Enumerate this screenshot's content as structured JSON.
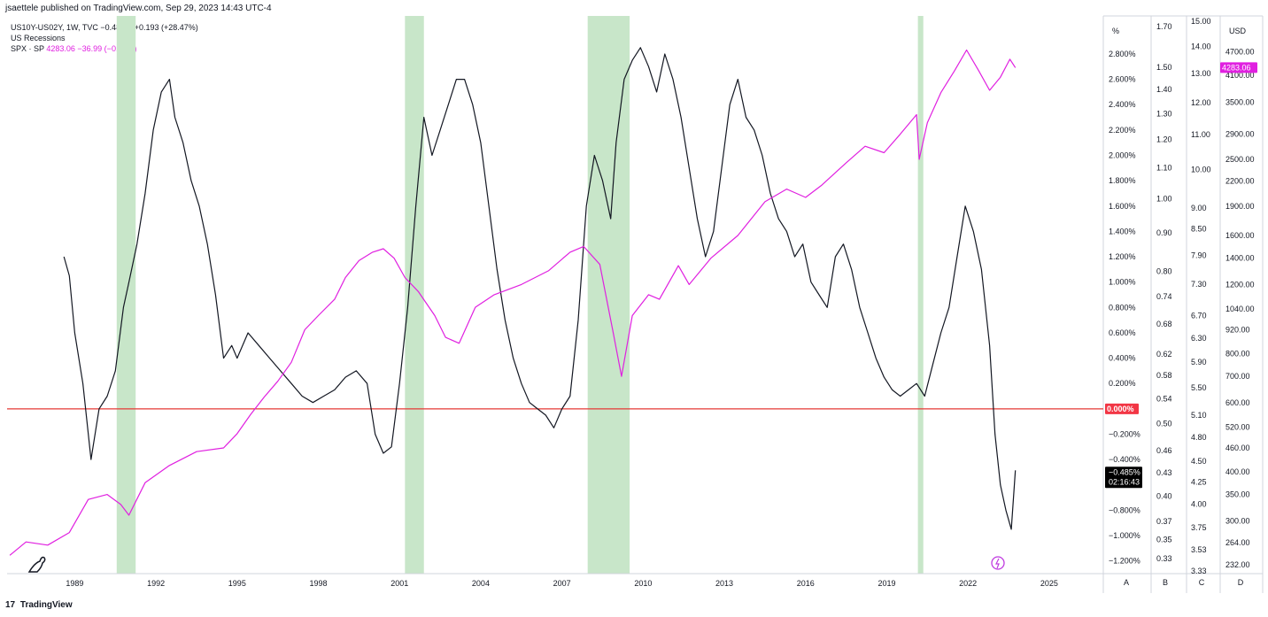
{
  "header": {
    "text": "jsaettele published on TradingView.com, Sep 29, 2023 14:43 UTC-4"
  },
  "legend": {
    "spread_name": "US10Y-US02Y, 1W, TVC",
    "spread_values": "−0.485%  +0.193 (+28.47%)",
    "recessions_name": "US Recessions",
    "spx_name": "SPX · SP",
    "spx_values": "4283.06  −36.99 (−0.86%)"
  },
  "footer": {
    "brand": "TradingView",
    "logo": "17"
  },
  "scales": {
    "A_unit": "%",
    "D_unit": "USD",
    "A_labels": [
      "2.800%",
      "2.600%",
      "2.400%",
      "2.200%",
      "2.000%",
      "1.800%",
      "1.600%",
      "1.400%",
      "1.200%",
      "1.000%",
      "0.800%",
      "0.600%",
      "0.400%",
      "0.200%",
      "−0.200%",
      "−0.400%",
      "−0.800%",
      "−1.000%",
      "−1.200%"
    ],
    "B_labels": [
      "1.70",
      "1.50",
      "1.40",
      "1.30",
      "1.20",
      "1.10",
      "1.00",
      "0.90",
      "0.80",
      "0.74",
      "0.68",
      "0.62",
      "0.58",
      "0.54",
      "0.50",
      "0.46",
      "0.43",
      "0.40",
      "0.37",
      "0.35",
      "0.33"
    ],
    "C_labels": [
      "15.00",
      "14.00",
      "13.00",
      "12.00",
      "11.00",
      "10.00",
      "9.00",
      "8.50",
      "7.90",
      "7.30",
      "6.70",
      "6.30",
      "5.90",
      "5.50",
      "5.10",
      "4.80",
      "4.50",
      "4.25",
      "4.00",
      "3.75",
      "3.53",
      "3.33"
    ],
    "D_labels": [
      "4700.00",
      "4100.00",
      "3500.00",
      "2900.00",
      "2500.00",
      "2200.00",
      "1900.00",
      "1600.00",
      "1400.00",
      "1200.00",
      "1040.00",
      "920.00",
      "800.00",
      "700.00",
      "600.00",
      "520.00",
      "460.00",
      "400.00",
      "350.00",
      "300.00",
      "264.00",
      "232.00"
    ],
    "pane_letters": [
      "A",
      "B",
      "C",
      "D"
    ],
    "zero_tag": "0.000%",
    "last_tag": "−0.485%",
    "countdown": "02:16:43",
    "spx_tag": "4283.06"
  },
  "colors": {
    "spread": "#131722",
    "spx": "#e020e0",
    "recession": "#c8e6c9",
    "zero_line": "#e53935",
    "tag_zero": "#f23645",
    "tag_last": "#000000"
  },
  "icons": {
    "watermark": "dino-icon",
    "flash": "lightning-icon"
  },
  "chart_data": {
    "type": "line",
    "x_tick_labels": [
      "1989",
      "1992",
      "1995",
      "1998",
      "2001",
      "2004",
      "2007",
      "2010",
      "2013",
      "2016",
      "2019",
      "2022",
      "2025"
    ],
    "x_ticks": [
      1989,
      1992,
      1995,
      1998,
      2001,
      2004,
      2007,
      2010,
      2013,
      2016,
      2019,
      2022,
      2025
    ],
    "xlim": [
      1986.5,
      2027.0
    ],
    "y_left_lim": [
      -1.3,
      3.1
    ],
    "y_right_log_lim": [
      220,
      5800
    ],
    "zero_line": 0.0,
    "recessions": [
      [
        1990.55,
        1991.25
      ],
      [
        2001.2,
        2001.9
      ],
      [
        2007.95,
        2009.5
      ],
      [
        2020.15,
        2020.35
      ]
    ],
    "series": [
      {
        "name": "US10Y-US02Y",
        "axis": "left",
        "x": [
          1988.6,
          1988.8,
          1989.0,
          1989.3,
          1989.6,
          1989.9,
          1990.2,
          1990.5,
          1990.8,
          1991.0,
          1991.3,
          1991.6,
          1991.9,
          1992.2,
          1992.5,
          1992.7,
          1993.0,
          1993.3,
          1993.6,
          1993.9,
          1994.2,
          1994.5,
          1994.8,
          1995.0,
          1995.4,
          1995.8,
          1996.2,
          1996.6,
          1997.0,
          1997.4,
          1997.8,
          1998.2,
          1998.6,
          1999.0,
          1999.4,
          1999.8,
          2000.1,
          2000.4,
          2000.7,
          2001.0,
          2001.3,
          2001.6,
          2001.9,
          2002.2,
          2002.5,
          2002.8,
          2003.1,
          2003.4,
          2003.7,
          2004.0,
          2004.3,
          2004.6,
          2004.9,
          2005.2,
          2005.5,
          2005.8,
          2006.1,
          2006.4,
          2006.7,
          2007.0,
          2007.3,
          2007.6,
          2007.9,
          2008.2,
          2008.5,
          2008.8,
          2009.0,
          2009.3,
          2009.6,
          2009.9,
          2010.2,
          2010.5,
          2010.8,
          2011.1,
          2011.4,
          2011.7,
          2012.0,
          2012.3,
          2012.6,
          2012.9,
          2013.2,
          2013.5,
          2013.8,
          2014.1,
          2014.4,
          2014.7,
          2015.0,
          2015.3,
          2015.6,
          2015.9,
          2016.2,
          2016.5,
          2016.8,
          2017.1,
          2017.4,
          2017.7,
          2018.0,
          2018.3,
          2018.6,
          2018.9,
          2019.2,
          2019.5,
          2019.8,
          2020.1,
          2020.4,
          2020.7,
          2021.0,
          2021.3,
          2021.6,
          2021.9,
          2022.2,
          2022.5,
          2022.8,
          2023.0,
          2023.2,
          2023.4,
          2023.6,
          2023.75
        ],
        "y": [
          1.2,
          1.05,
          0.6,
          0.2,
          -0.4,
          0.0,
          0.1,
          0.3,
          0.8,
          1.0,
          1.3,
          1.7,
          2.2,
          2.5,
          2.6,
          2.3,
          2.1,
          1.8,
          1.6,
          1.3,
          0.9,
          0.4,
          0.5,
          0.4,
          0.6,
          0.5,
          0.4,
          0.3,
          0.2,
          0.1,
          0.05,
          0.1,
          0.15,
          0.25,
          0.3,
          0.2,
          -0.2,
          -0.35,
          -0.3,
          0.2,
          0.8,
          1.6,
          2.3,
          2.0,
          2.2,
          2.4,
          2.6,
          2.6,
          2.4,
          2.1,
          1.6,
          1.1,
          0.7,
          0.4,
          0.2,
          0.05,
          0.0,
          -0.05,
          -0.15,
          0.0,
          0.1,
          0.7,
          1.6,
          2.0,
          1.8,
          1.5,
          2.1,
          2.6,
          2.75,
          2.85,
          2.7,
          2.5,
          2.8,
          2.6,
          2.3,
          1.9,
          1.5,
          1.2,
          1.4,
          1.9,
          2.4,
          2.6,
          2.3,
          2.2,
          2.0,
          1.7,
          1.5,
          1.4,
          1.2,
          1.3,
          1.0,
          0.9,
          0.8,
          1.2,
          1.3,
          1.1,
          0.8,
          0.6,
          0.4,
          0.25,
          0.15,
          0.1,
          0.15,
          0.2,
          0.1,
          0.35,
          0.6,
          0.8,
          1.2,
          1.6,
          1.4,
          1.1,
          0.5,
          -0.2,
          -0.6,
          -0.8,
          -0.95,
          -0.485
        ]
      },
      {
        "name": "SPX",
        "axis": "right",
        "x": [
          1986.6,
          1987.2,
          1988.0,
          1988.8,
          1989.5,
          1990.2,
          1990.7,
          1991.0,
          1991.6,
          1992.5,
          1993.5,
          1994.5,
          1995.0,
          1995.5,
          1996.0,
          1996.5,
          1997.0,
          1997.5,
          1998.0,
          1998.6,
          1999.0,
          1999.5,
          2000.0,
          2000.4,
          2000.8,
          2001.2,
          2001.7,
          2002.3,
          2002.7,
          2003.2,
          2003.8,
          2004.5,
          2005.5,
          2006.5,
          2007.3,
          2007.8,
          2008.4,
          2008.9,
          2009.2,
          2009.6,
          2010.2,
          2010.6,
          2011.3,
          2011.7,
          2012.5,
          2013.5,
          2014.5,
          2015.3,
          2016.0,
          2016.6,
          2017.5,
          2018.2,
          2018.9,
          2019.5,
          2020.1,
          2020.2,
          2020.5,
          2021.0,
          2021.5,
          2021.95,
          2022.4,
          2022.8,
          2023.2,
          2023.55,
          2023.75
        ],
        "y": [
          245,
          265,
          260,
          280,
          340,
          350,
          330,
          310,
          375,
          415,
          450,
          460,
          500,
          560,
          620,
          680,
          760,
          920,
          1000,
          1100,
          1250,
          1380,
          1450,
          1480,
          1400,
          1250,
          1150,
          1000,
          880,
          850,
          1050,
          1130,
          1200,
          1300,
          1450,
          1500,
          1350,
          900,
          700,
          1000,
          1130,
          1100,
          1340,
          1200,
          1400,
          1600,
          1950,
          2100,
          2000,
          2150,
          2450,
          2700,
          2600,
          2900,
          3250,
          2500,
          3100,
          3700,
          4200,
          4750,
          4200,
          3750,
          4050,
          4500,
          4283.06
        ]
      }
    ]
  }
}
